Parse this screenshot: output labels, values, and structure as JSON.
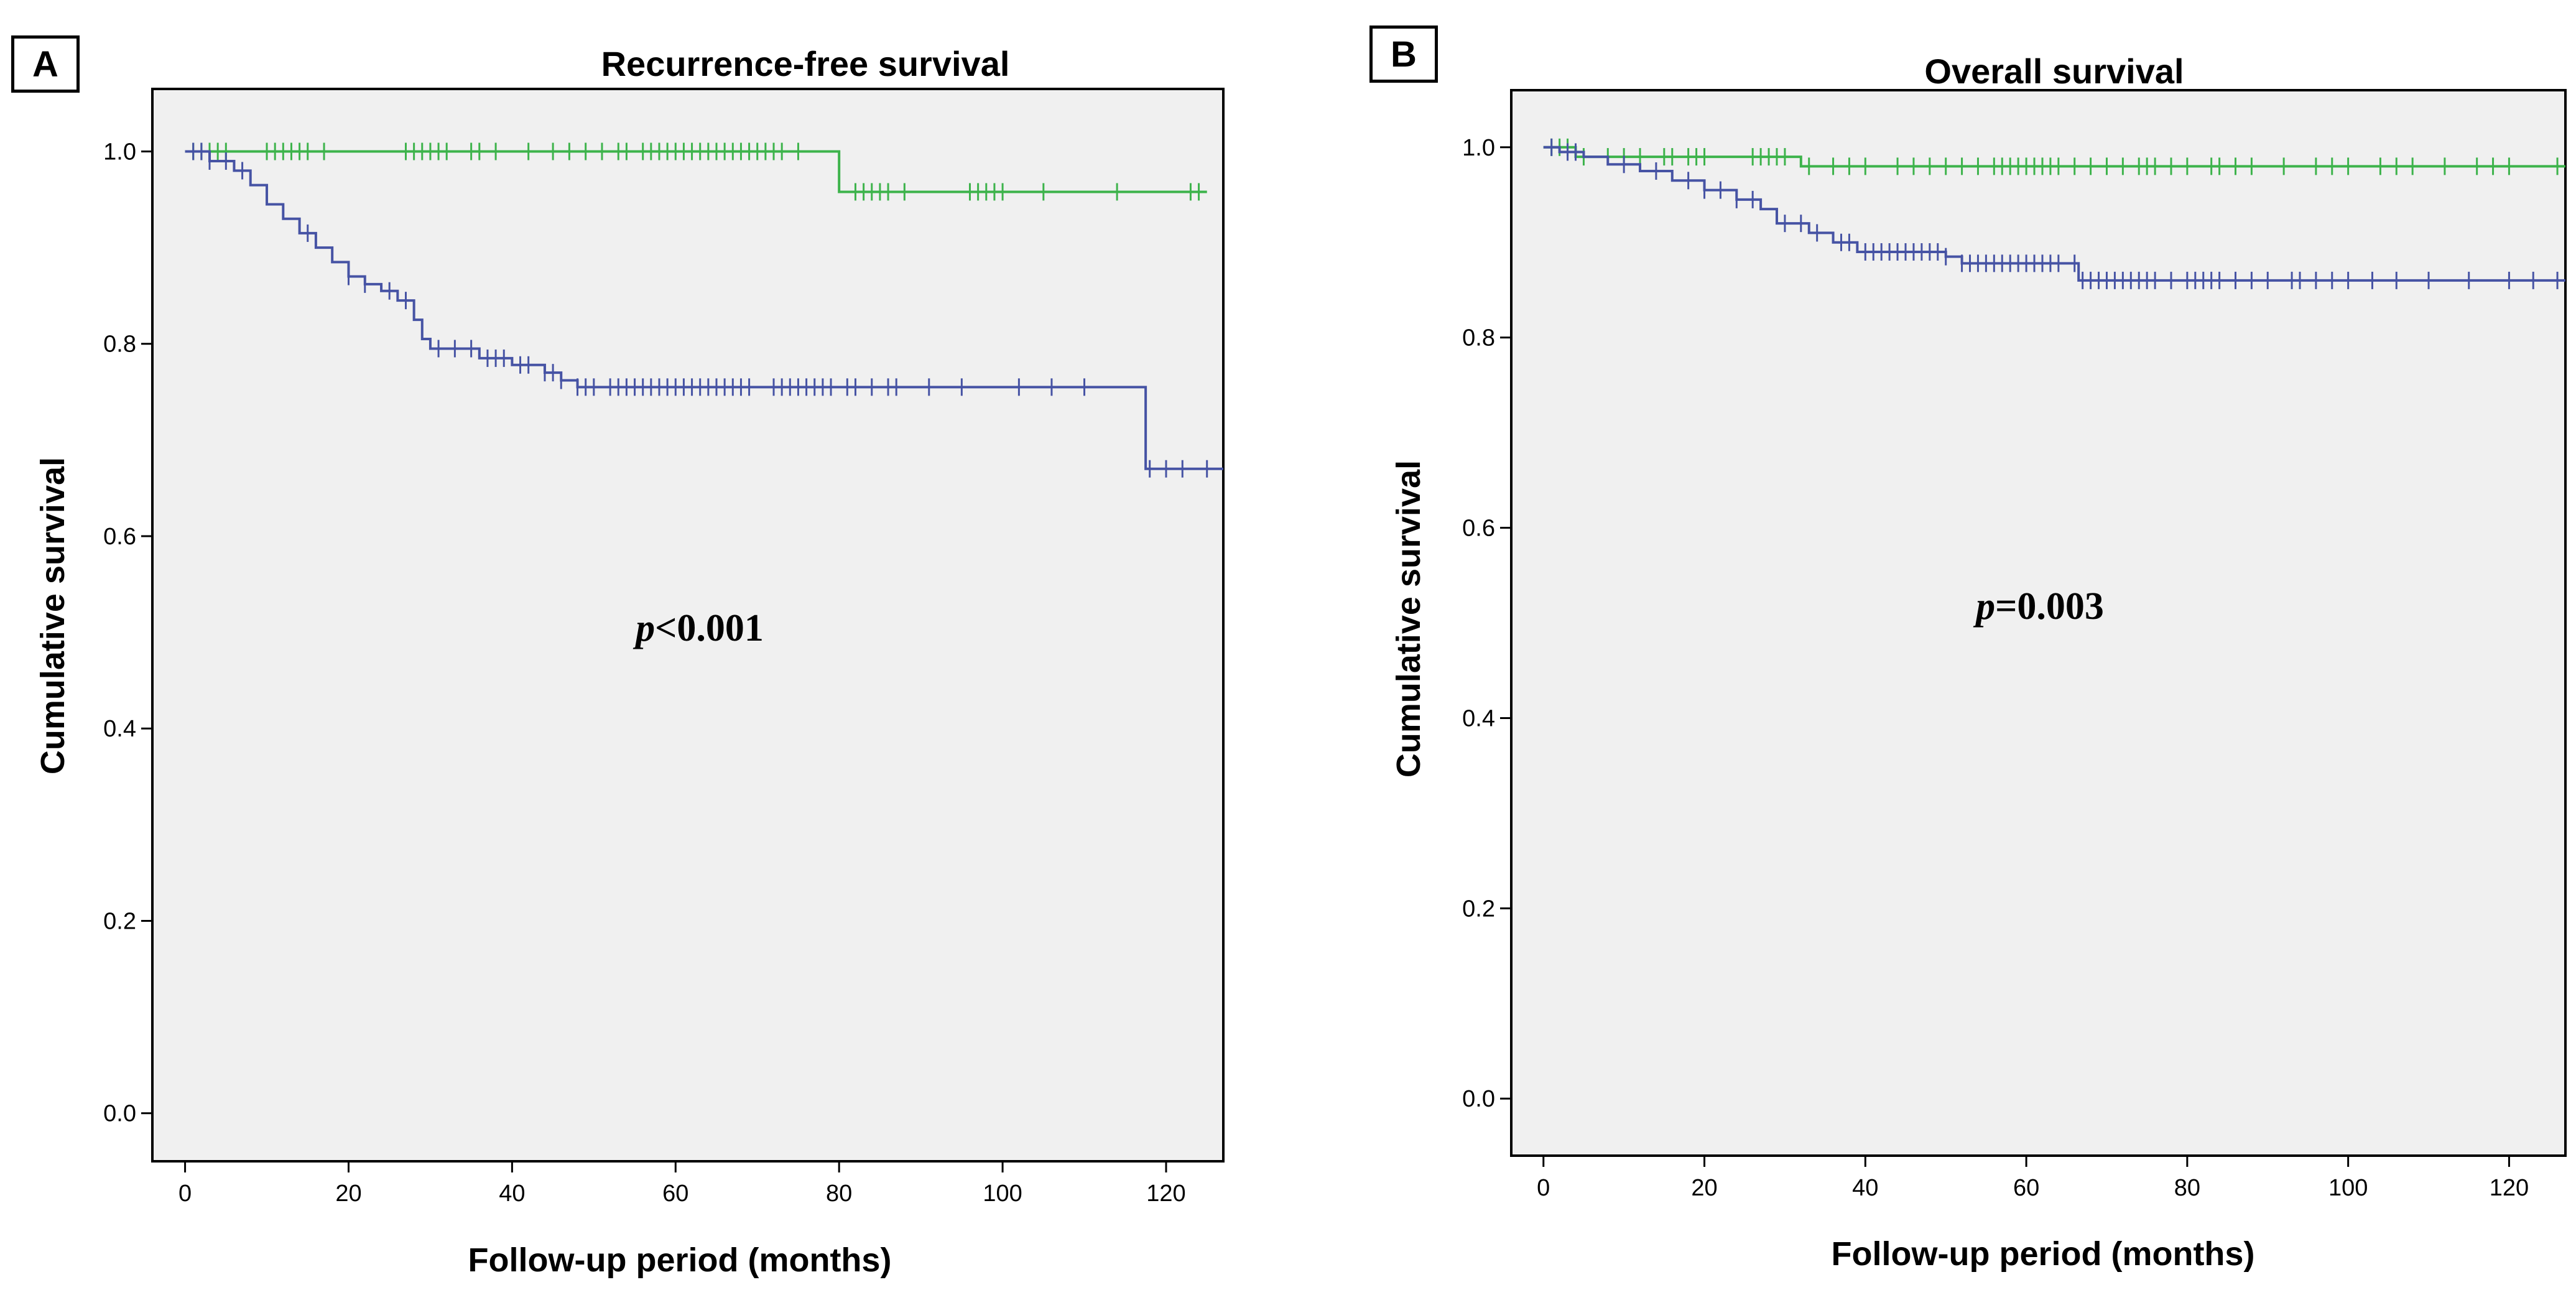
{
  "panels": [
    {
      "label": "A"
    },
    {
      "label": "B"
    }
  ],
  "chart_data": [
    {
      "type": "line",
      "step": true,
      "title": "Recurrence-free survival",
      "xlabel": "Follow-up period (months)",
      "ylabel": "Cumulative survival",
      "xlim": [
        -4,
        127
      ],
      "ylim": [
        -0.05,
        1.065
      ],
      "xticks": [
        0,
        20,
        40,
        60,
        80,
        100,
        120
      ],
      "yticks": [
        0.0,
        0.2,
        0.4,
        0.6,
        0.8,
        1.0
      ],
      "xtick_labels": [
        "0",
        "20",
        "40",
        "60",
        "80",
        "100",
        "120"
      ],
      "ytick_labels": [
        "0.0",
        "0.2",
        "0.4",
        "0.6",
        "0.8",
        "1.0"
      ],
      "annotation": {
        "italic": "p",
        "text": "<0.001",
        "x": 62,
        "y": 0.5
      },
      "series": [
        {
          "name": "green group",
          "color": "#3db34b",
          "steps": [
            [
              0,
              1.0
            ],
            [
              80,
              0.958
            ],
            [
              125,
              0.958
            ]
          ],
          "censored": [
            1,
            2,
            3,
            4,
            5,
            10,
            11,
            12,
            13,
            14,
            15,
            17,
            27,
            28,
            29,
            30,
            31,
            32,
            35,
            36,
            38,
            42,
            45,
            47,
            49,
            51,
            53,
            54,
            56,
            57,
            58,
            59,
            60,
            61,
            62,
            63,
            64,
            65,
            66,
            67,
            68,
            69,
            70,
            71,
            72,
            73,
            75,
            82,
            83,
            84,
            85,
            86,
            88,
            96,
            97,
            98,
            99,
            100,
            105,
            114,
            123,
            124
          ]
        },
        {
          "name": "blue group",
          "color": "#4653a4",
          "steps": [
            [
              0,
              1.0
            ],
            [
              3,
              0.99
            ],
            [
              6,
              0.98
            ],
            [
              8,
              0.965
            ],
            [
              10,
              0.945
            ],
            [
              12,
              0.93
            ],
            [
              14,
              0.915
            ],
            [
              16,
              0.9
            ],
            [
              18,
              0.885
            ],
            [
              20,
              0.87
            ],
            [
              22,
              0.862
            ],
            [
              24,
              0.855
            ],
            [
              26,
              0.845
            ],
            [
              28,
              0.825
            ],
            [
              29,
              0.805
            ],
            [
              30,
              0.795
            ],
            [
              36,
              0.785
            ],
            [
              40,
              0.778
            ],
            [
              44,
              0.77
            ],
            [
              46,
              0.762
            ],
            [
              48,
              0.755
            ],
            [
              117,
              0.755
            ],
            [
              117.5,
              0.67
            ],
            [
              127,
              0.67
            ]
          ],
          "censored": [
            1,
            2,
            3,
            5,
            7,
            15,
            20,
            22,
            25,
            27,
            31,
            33,
            35,
            37,
            38,
            39,
            41,
            42,
            44,
            45,
            46,
            48,
            49,
            50,
            52,
            53,
            54,
            55,
            56,
            57,
            58,
            59,
            60,
            61,
            62,
            63,
            64,
            65,
            66,
            67,
            68,
            69,
            72,
            73,
            74,
            75,
            76,
            77,
            78,
            79,
            81,
            82,
            84,
            86,
            87,
            91,
            95,
            102,
            106,
            110,
            118,
            120,
            122,
            125
          ]
        }
      ]
    },
    {
      "type": "line",
      "step": true,
      "title": "Overall survival",
      "xlabel": "Follow-up period (months)",
      "ylabel": "Cumulative survival",
      "xlim": [
        -4,
        127
      ],
      "ylim": [
        -0.06,
        1.06
      ],
      "xticks": [
        0,
        20,
        40,
        60,
        80,
        100,
        120
      ],
      "yticks": [
        0.0,
        0.2,
        0.4,
        0.6,
        0.8,
        1.0
      ],
      "xtick_labels": [
        "0",
        "20",
        "40",
        "60",
        "80",
        "100",
        "120"
      ],
      "ytick_labels": [
        "0.0",
        "0.2",
        "0.4",
        "0.6",
        "0.8",
        "1.0"
      ],
      "annotation": {
        "italic": "p",
        "text": "=0.003",
        "x": 60,
        "y": 0.55
      },
      "series": [
        {
          "name": "green group",
          "color": "#3db34b",
          "steps": [
            [
              0,
              1.0
            ],
            [
              4,
              0.99
            ],
            [
              31,
              0.99
            ],
            [
              32,
              0.98
            ],
            [
              127,
              0.98
            ]
          ],
          "censored": [
            1,
            2,
            3,
            5,
            8,
            10,
            12,
            15,
            16,
            18,
            19,
            20,
            26,
            27,
            28,
            29,
            30,
            33,
            36,
            38,
            40,
            44,
            46,
            48,
            50,
            52,
            54,
            56,
            57,
            58,
            59,
            60,
            61,
            62,
            63,
            64,
            66,
            68,
            70,
            72,
            74,
            75,
            76,
            78,
            80,
            83,
            84,
            86,
            88,
            92,
            96,
            98,
            100,
            104,
            106,
            108,
            112,
            116,
            118,
            120,
            126
          ]
        },
        {
          "name": "blue group",
          "color": "#4653a4",
          "steps": [
            [
              0,
              1.0
            ],
            [
              2,
              0.995
            ],
            [
              5,
              0.99
            ],
            [
              8,
              0.982
            ],
            [
              12,
              0.975
            ],
            [
              16,
              0.965
            ],
            [
              20,
              0.955
            ],
            [
              24,
              0.945
            ],
            [
              27,
              0.935
            ],
            [
              29,
              0.92
            ],
            [
              33,
              0.91
            ],
            [
              36,
              0.9
            ],
            [
              39,
              0.89
            ],
            [
              50,
              0.885
            ],
            [
              52,
              0.878
            ],
            [
              66,
              0.878
            ],
            [
              66.5,
              0.86
            ],
            [
              127,
              0.86
            ]
          ],
          "censored": [
            1,
            3,
            4,
            10,
            14,
            18,
            20,
            22,
            24,
            26,
            30,
            32,
            34,
            37,
            38,
            40,
            41,
            42,
            43,
            44,
            45,
            46,
            47,
            48,
            49,
            50,
            52,
            53,
            54,
            55,
            56,
            57,
            58,
            59,
            60,
            61,
            62,
            63,
            64,
            66,
            67,
            68,
            69,
            70,
            71,
            72,
            73,
            74,
            75,
            76,
            78,
            80,
            81,
            82,
            83,
            84,
            86,
            88,
            90,
            93,
            94,
            96,
            98,
            100,
            103,
            106,
            110,
            115,
            120,
            123,
            126
          ]
        }
      ]
    }
  ]
}
